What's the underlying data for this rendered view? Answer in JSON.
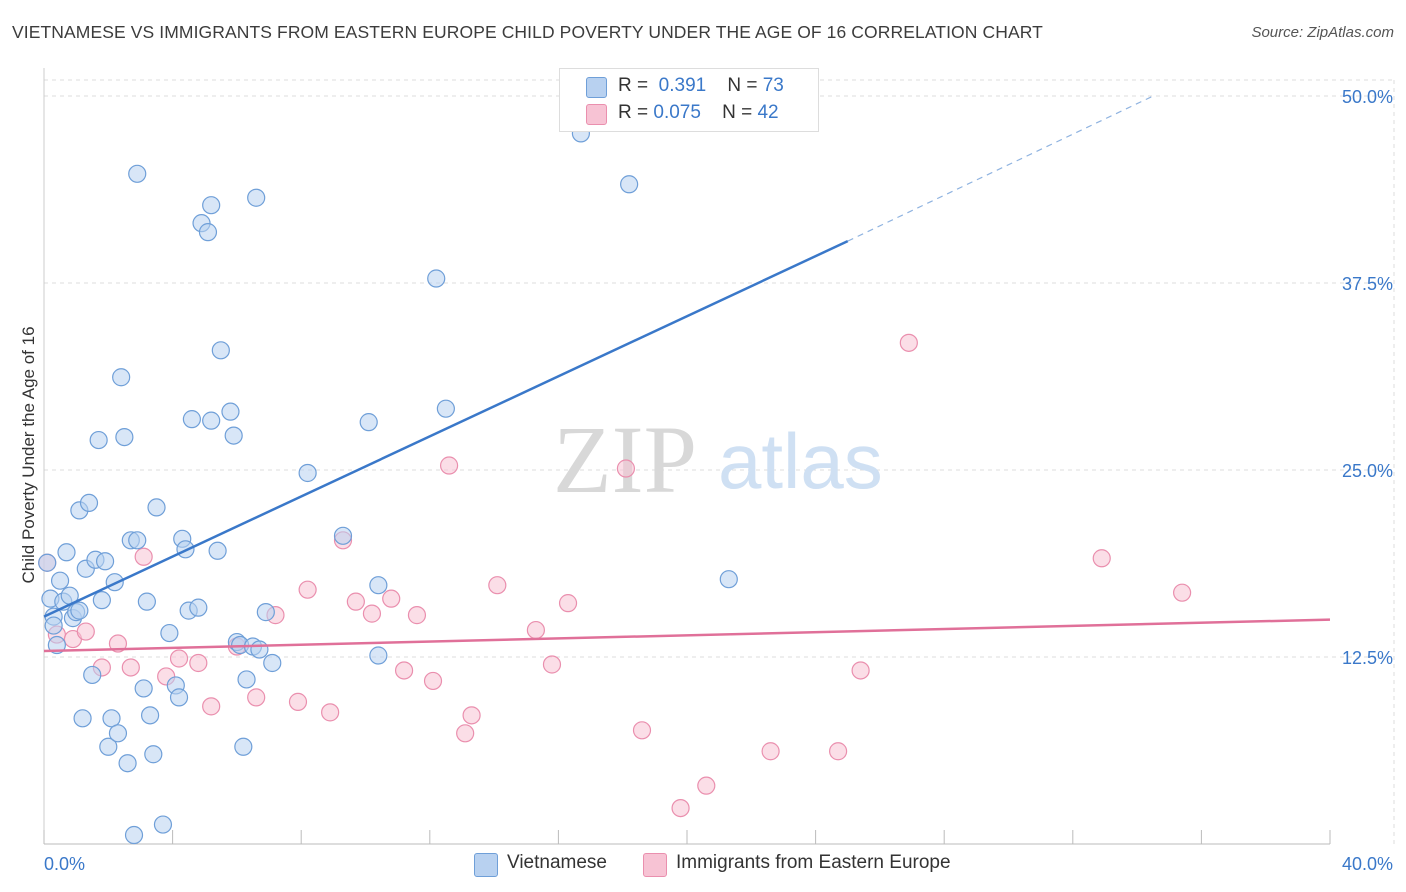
{
  "title": "VIETNAMESE VS IMMIGRANTS FROM EASTERN EUROPE CHILD POVERTY UNDER THE AGE OF 16 CORRELATION CHART",
  "source": "Source: ZipAtlas.com",
  "watermark": {
    "zip": "ZIP",
    "atlas": "atlas"
  },
  "colors": {
    "blue_fill": "#b8d1f0",
    "blue_stroke": "#6f9fd8",
    "blue_line": "#3a78c9",
    "pink_fill": "#f7c3d4",
    "pink_stroke": "#ea8fae",
    "pink_line": "#e07099",
    "tick_label": "#3a78c9",
    "grid": "#dddddd"
  },
  "legend": {
    "rows": [
      {
        "r_label": "R =",
        "r_value": "0.391",
        "n_label": "N =",
        "n_value": "73"
      },
      {
        "r_label": "R =",
        "r_value": "0.075",
        "n_label": "N =",
        "n_value": "42"
      }
    ]
  },
  "chart_data": {
    "type": "scatter",
    "title": "VIETNAMESE VS IMMIGRANTS FROM EASTERN EUROPE CHILD POVERTY UNDER THE AGE OF 16 CORRELATION CHART",
    "xlabel": "",
    "ylabel": "Child Poverty Under the Age of 16",
    "xlim": [
      0,
      40
    ],
    "ylim": [
      0,
      50
    ],
    "x_tick_labels": [
      {
        "value": 0,
        "label": "0.0%"
      },
      {
        "value": 40,
        "label": "40.0%"
      }
    ],
    "y_tick_labels": [
      {
        "value": 12.5,
        "label": "12.5%"
      },
      {
        "value": 25,
        "label": "25.0%"
      },
      {
        "value": 37.5,
        "label": "37.5%"
      },
      {
        "value": 50,
        "label": "50.0%"
      }
    ],
    "grid": true,
    "legend_position": "top-center",
    "series": [
      {
        "name": "Vietnamese",
        "trend": {
          "x_start": 0,
          "y_start": 15.2,
          "x_end": 25,
          "y_end": 40.3,
          "dashed_to_x": 34.5,
          "dashed_to_y": 50
        },
        "points": [
          [
            0.1,
            18.8
          ],
          [
            0.2,
            16.4
          ],
          [
            0.3,
            15.2
          ],
          [
            0.3,
            14.6
          ],
          [
            0.4,
            13.3
          ],
          [
            0.5,
            17.6
          ],
          [
            0.6,
            16.2
          ],
          [
            0.7,
            19.5
          ],
          [
            0.8,
            16.6
          ],
          [
            0.9,
            15.1
          ],
          [
            1.0,
            15.5
          ],
          [
            1.1,
            15.6
          ],
          [
            1.1,
            22.3
          ],
          [
            1.2,
            8.4
          ],
          [
            1.3,
            18.4
          ],
          [
            1.4,
            22.8
          ],
          [
            1.5,
            11.3
          ],
          [
            1.6,
            19.0
          ],
          [
            1.7,
            27.0
          ],
          [
            1.8,
            16.3
          ],
          [
            1.9,
            18.9
          ],
          [
            2.0,
            6.5
          ],
          [
            2.1,
            8.4
          ],
          [
            2.2,
            17.5
          ],
          [
            2.3,
            7.4
          ],
          [
            2.4,
            31.2
          ],
          [
            2.5,
            27.2
          ],
          [
            2.6,
            5.4
          ],
          [
            2.7,
            20.3
          ],
          [
            2.8,
            0.6
          ],
          [
            2.9,
            44.8
          ],
          [
            2.9,
            20.3
          ],
          [
            3.1,
            10.4
          ],
          [
            3.2,
            16.2
          ],
          [
            3.3,
            8.6
          ],
          [
            3.4,
            6.0
          ],
          [
            3.5,
            22.5
          ],
          [
            3.7,
            1.3
          ],
          [
            3.9,
            14.1
          ],
          [
            4.1,
            10.6
          ],
          [
            4.2,
            9.8
          ],
          [
            4.3,
            20.4
          ],
          [
            4.4,
            19.7
          ],
          [
            4.5,
            15.6
          ],
          [
            4.6,
            28.4
          ],
          [
            4.8,
            15.8
          ],
          [
            4.9,
            41.5
          ],
          [
            5.1,
            40.9
          ],
          [
            5.2,
            42.7
          ],
          [
            5.2,
            28.3
          ],
          [
            5.4,
            19.6
          ],
          [
            5.5,
            33.0
          ],
          [
            5.8,
            28.9
          ],
          [
            5.9,
            27.3
          ],
          [
            6.0,
            13.5
          ],
          [
            6.1,
            13.3
          ],
          [
            6.2,
            6.5
          ],
          [
            6.3,
            11.0
          ],
          [
            6.5,
            13.2
          ],
          [
            6.6,
            43.2
          ],
          [
            6.7,
            13.0
          ],
          [
            6.9,
            15.5
          ],
          [
            7.1,
            12.1
          ],
          [
            8.2,
            24.8
          ],
          [
            9.3,
            20.6
          ],
          [
            10.1,
            28.2
          ],
          [
            10.4,
            17.3
          ],
          [
            10.4,
            12.6
          ],
          [
            12.2,
            37.8
          ],
          [
            12.5,
            29.1
          ],
          [
            16.7,
            47.5
          ],
          [
            18.2,
            44.1
          ],
          [
            21.3,
            17.7
          ]
        ]
      },
      {
        "name": "Immigrants from Eastern Europe",
        "trend": {
          "x_start": 0,
          "y_start": 12.9,
          "x_end": 40,
          "y_end": 15.0
        },
        "points": [
          [
            0.1,
            18.8
          ],
          [
            0.4,
            14.0
          ],
          [
            0.9,
            13.7
          ],
          [
            1.3,
            14.2
          ],
          [
            1.8,
            11.8
          ],
          [
            2.3,
            13.4
          ],
          [
            2.7,
            11.8
          ],
          [
            3.1,
            19.2
          ],
          [
            3.8,
            11.2
          ],
          [
            4.2,
            12.4
          ],
          [
            4.8,
            12.1
          ],
          [
            5.2,
            9.2
          ],
          [
            6.0,
            13.2
          ],
          [
            6.6,
            9.8
          ],
          [
            7.2,
            15.3
          ],
          [
            7.9,
            9.5
          ],
          [
            8.2,
            17.0
          ],
          [
            8.9,
            8.8
          ],
          [
            9.3,
            20.3
          ],
          [
            9.7,
            16.2
          ],
          [
            10.2,
            15.4
          ],
          [
            10.8,
            16.4
          ],
          [
            11.2,
            11.6
          ],
          [
            11.6,
            15.3
          ],
          [
            12.1,
            10.9
          ],
          [
            12.6,
            25.3
          ],
          [
            13.1,
            7.4
          ],
          [
            13.3,
            8.6
          ],
          [
            14.1,
            17.3
          ],
          [
            15.3,
            14.3
          ],
          [
            15.8,
            12.0
          ],
          [
            16.3,
            16.1
          ],
          [
            18.1,
            25.1
          ],
          [
            18.6,
            7.6
          ],
          [
            19.8,
            2.4
          ],
          [
            20.6,
            3.9
          ],
          [
            22.6,
            6.2
          ],
          [
            24.7,
            6.2
          ],
          [
            25.4,
            11.6
          ],
          [
            26.9,
            33.5
          ],
          [
            32.9,
            19.1
          ],
          [
            35.4,
            16.8
          ]
        ]
      }
    ]
  },
  "bottom_legend": [
    {
      "label": "Vietnamese"
    },
    {
      "label": "Immigrants from Eastern Europe"
    }
  ]
}
